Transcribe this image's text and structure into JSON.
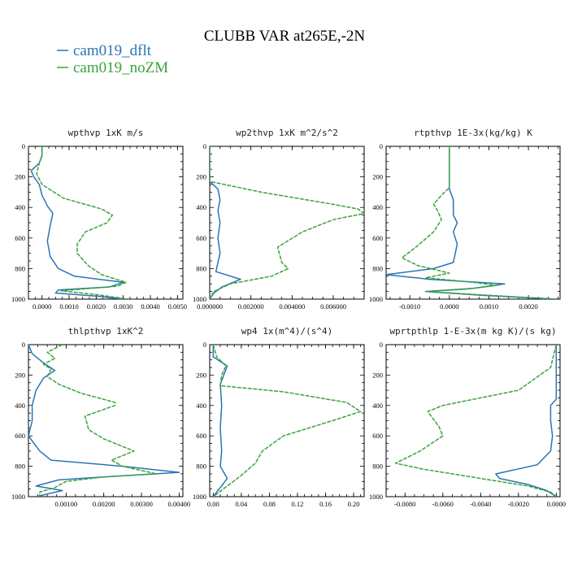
{
  "title": "CLUBB VAR at265E,-2N",
  "legend": [
    {
      "label": "cam019_dflt",
      "color": "#2b74b4"
    },
    {
      "label": "cam019_noZM",
      "color": "#3aa33a"
    }
  ],
  "chart_data": [
    {
      "type": "line",
      "title": "wpthvp  1xK m/s",
      "xlim": [
        -0.0005,
        0.0052
      ],
      "ylim": [
        1000,
        0
      ],
      "xticks": [
        "0.0000",
        "0.0010",
        "0.0020",
        "0.0030",
        "0.0040",
        "0.0050"
      ],
      "xtick_values": [
        0,
        0.001,
        0.002,
        0.003,
        0.004,
        0.005
      ],
      "yticks": [
        "0",
        "200",
        "400",
        "600",
        "800",
        "1000"
      ],
      "series": [
        {
          "name": "cam019_dflt",
          "points": [
            [
              0.0,
              0
            ],
            [
              0.0,
              60
            ],
            [
              -0.0001,
              110
            ],
            [
              -0.0004,
              160
            ],
            [
              -0.0003,
              200
            ],
            [
              -0.0001,
              250
            ],
            [
              0.0,
              320
            ],
            [
              0.0002,
              390
            ],
            [
              0.0004,
              440
            ],
            [
              0.0003,
              520
            ],
            [
              0.0002,
              620
            ],
            [
              0.0003,
              720
            ],
            [
              0.0006,
              800
            ],
            [
              0.0012,
              850
            ],
            [
              0.003,
              890
            ],
            [
              0.0025,
              920
            ],
            [
              0.0006,
              940
            ],
            [
              0.0005,
              960
            ],
            [
              0.002,
              980
            ],
            [
              0.003,
              1000
            ]
          ]
        },
        {
          "name": "cam019_noZM",
          "points": [
            [
              0.0,
              0
            ],
            [
              0.0,
              60
            ],
            [
              -0.0001,
              110
            ],
            [
              -0.0002,
              180
            ],
            [
              0.0,
              250
            ],
            [
              0.0008,
              340
            ],
            [
              0.0022,
              410
            ],
            [
              0.0026,
              450
            ],
            [
              0.0024,
              500
            ],
            [
              0.0016,
              560
            ],
            [
              0.0013,
              640
            ],
            [
              0.0013,
              700
            ],
            [
              0.0017,
              780
            ],
            [
              0.0022,
              840
            ],
            [
              0.0031,
              890
            ],
            [
              0.0028,
              915
            ],
            [
              0.0007,
              945
            ],
            [
              0.002,
              970
            ],
            [
              0.0032,
              1000
            ]
          ]
        }
      ]
    },
    {
      "type": "line",
      "title": "wp2thvp  1xK m^2/s^2",
      "xlim": [
        0,
        0.0075
      ],
      "ylim": [
        1000,
        0
      ],
      "xticks": [
        "0.000000",
        "0.002000",
        "0.004000",
        "0.006000"
      ],
      "xtick_values": [
        0,
        0.002,
        0.004,
        0.006
      ],
      "yticks": [
        "0",
        "200",
        "400",
        "600",
        "800",
        "1000"
      ],
      "series": [
        {
          "name": "cam019_dflt",
          "points": [
            [
              0.0,
              0
            ],
            [
              0.0,
              230
            ],
            [
              0.0004,
              280
            ],
            [
              0.0005,
              350
            ],
            [
              0.0004,
              420
            ],
            [
              0.0005,
              500
            ],
            [
              0.0004,
              600
            ],
            [
              0.0005,
              700
            ],
            [
              0.0003,
              820
            ],
            [
              0.0015,
              870
            ],
            [
              0.0006,
              920
            ],
            [
              0.0002,
              960
            ],
            [
              0.0,
              1000
            ]
          ]
        },
        {
          "name": "cam019_noZM",
          "points": [
            [
              0.0,
              0
            ],
            [
              0.0,
              230
            ],
            [
              0.0025,
              300
            ],
            [
              0.006,
              380
            ],
            [
              0.0072,
              410
            ],
            [
              0.0075,
              440
            ],
            [
              0.006,
              480
            ],
            [
              0.0045,
              560
            ],
            [
              0.0033,
              660
            ],
            [
              0.0035,
              760
            ],
            [
              0.0038,
              800
            ],
            [
              0.003,
              850
            ],
            [
              0.001,
              900
            ],
            [
              0.0002,
              950
            ],
            [
              0.0,
              1000
            ]
          ]
        }
      ]
    },
    {
      "type": "line",
      "title": "rtpthvp  1E-3x(kg/kg) K",
      "xlim": [
        -0.0016,
        0.0028
      ],
      "ylim": [
        1000,
        0
      ],
      "xticks": [
        "-0.0010",
        "0.0000",
        "0.0010",
        "0.0020"
      ],
      "xtick_values": [
        -0.001,
        0,
        0.001,
        0.002
      ],
      "yticks": [
        "0",
        "200",
        "400",
        "600",
        "800",
        "1000"
      ],
      "series": [
        {
          "name": "cam019_dflt",
          "points": [
            [
              0.0,
              0
            ],
            [
              0.0,
              280
            ],
            [
              0.0001,
              350
            ],
            [
              0.0001,
              450
            ],
            [
              0.0002,
              500
            ],
            [
              0.0001,
              560
            ],
            [
              0.0002,
              640
            ],
            [
              0.0001,
              760
            ],
            [
              -0.0004,
              800
            ],
            [
              -0.0016,
              840
            ],
            [
              -0.0005,
              870
            ],
            [
              0.0014,
              900
            ],
            [
              0.0006,
              930
            ],
            [
              -0.0006,
              950
            ],
            [
              0.0008,
              975
            ],
            [
              0.0027,
              1000
            ]
          ]
        },
        {
          "name": "cam019_noZM",
          "points": [
            [
              0.0,
              0
            ],
            [
              0.0,
              270
            ],
            [
              -0.0002,
              320
            ],
            [
              -0.0004,
              380
            ],
            [
              -0.0003,
              420
            ],
            [
              -0.0002,
              480
            ],
            [
              -0.0004,
              560
            ],
            [
              -0.0008,
              650
            ],
            [
              -0.0012,
              730
            ],
            [
              -0.0008,
              780
            ],
            [
              0.0,
              830
            ],
            [
              -0.0006,
              860
            ],
            [
              0.0006,
              890
            ],
            [
              0.0012,
              910
            ],
            [
              0.0004,
              935
            ],
            [
              -0.0006,
              950
            ],
            [
              0.001,
              975
            ],
            [
              0.0027,
              1000
            ]
          ]
        }
      ]
    },
    {
      "type": "line",
      "title": "thlpthvp  1xK^2",
      "xlim": [
        0,
        0.0041
      ],
      "ylim": [
        1000,
        0
      ],
      "xticks": [
        "0.00100",
        "0.00200",
        "0.00300",
        "0.00400"
      ],
      "xtick_values": [
        0.001,
        0.002,
        0.003,
        0.004
      ],
      "yticks": [
        "0",
        "200",
        "400",
        "600",
        "800",
        "1000"
      ],
      "series": [
        {
          "name": "cam019_dflt",
          "points": [
            [
              0.0,
              0
            ],
            [
              0.0001,
              60
            ],
            [
              0.0004,
              120
            ],
            [
              0.0007,
              170
            ],
            [
              0.0004,
              220
            ],
            [
              0.0002,
              300
            ],
            [
              0.0001,
              400
            ],
            [
              0.0001,
              500
            ],
            [
              0.0,
              600
            ],
            [
              0.0003,
              700
            ],
            [
              0.0006,
              760
            ],
            [
              0.0025,
              800
            ],
            [
              0.004,
              840
            ],
            [
              0.002,
              870
            ],
            [
              0.0008,
              890
            ],
            [
              0.0002,
              930
            ],
            [
              0.0009,
              960
            ],
            [
              0.0002,
              1000
            ]
          ]
        },
        {
          "name": "cam019_noZM",
          "points": [
            [
              0.0009,
              0
            ],
            [
              0.0005,
              50
            ],
            [
              0.0007,
              90
            ],
            [
              0.0004,
              130
            ],
            [
              0.0006,
              160
            ],
            [
              0.0005,
              210
            ],
            [
              0.0008,
              260
            ],
            [
              0.0014,
              320
            ],
            [
              0.0023,
              380
            ],
            [
              0.0023,
              400
            ],
            [
              0.0015,
              470
            ],
            [
              0.0016,
              560
            ],
            [
              0.002,
              620
            ],
            [
              0.0028,
              700
            ],
            [
              0.0022,
              760
            ],
            [
              0.0025,
              800
            ],
            [
              0.0034,
              850
            ],
            [
              0.002,
              870
            ],
            [
              0.001,
              900
            ],
            [
              0.0007,
              940
            ],
            [
              0.0003,
              970
            ],
            [
              0.0003,
              1000
            ]
          ]
        }
      ]
    },
    {
      "type": "line",
      "title": "wp4  1x(m^4)/(s^4)",
      "xlim": [
        -0.005,
        0.215
      ],
      "ylim": [
        1000,
        0
      ],
      "xticks": [
        "0.00",
        "0.04",
        "0.08",
        "0.12",
        "0.16",
        "0.20"
      ],
      "xtick_values": [
        0,
        0.04,
        0.08,
        0.12,
        0.16,
        0.2
      ],
      "yticks": [
        "0",
        "200",
        "400",
        "600",
        "800",
        "1000"
      ],
      "series": [
        {
          "name": "cam019_dflt",
          "points": [
            [
              0.0,
              0
            ],
            [
              0.0,
              80
            ],
            [
              0.02,
              140
            ],
            [
              0.015,
              200
            ],
            [
              0.01,
              260
            ],
            [
              0.012,
              400
            ],
            [
              0.01,
              550
            ],
            [
              0.012,
              700
            ],
            [
              0.01,
              800
            ],
            [
              0.02,
              880
            ],
            [
              0.01,
              940
            ],
            [
              0.005,
              970
            ],
            [
              0.0,
              1000
            ]
          ]
        },
        {
          "name": "cam019_noZM",
          "points": [
            [
              0.0,
              0
            ],
            [
              0.005,
              80
            ],
            [
              0.018,
              140
            ],
            [
              0.012,
              200
            ],
            [
              0.01,
              270
            ],
            [
              0.1,
              310
            ],
            [
              0.19,
              380
            ],
            [
              0.21,
              440
            ],
            [
              0.17,
              500
            ],
            [
              0.1,
              600
            ],
            [
              0.07,
              700
            ],
            [
              0.06,
              780
            ],
            [
              0.04,
              860
            ],
            [
              0.02,
              930
            ],
            [
              0.0,
              1000
            ]
          ]
        }
      ]
    },
    {
      "type": "line",
      "title": "wprtpthlp  1-E-3x(m kg K)/(s kg)",
      "xlim": [
        -0.009,
        0.0002
      ],
      "ylim": [
        1000,
        0
      ],
      "xticks": [
        "-0.0080",
        "-0.0060",
        "-0.0040",
        "-0.0020",
        "0.0000"
      ],
      "xtick_values": [
        -0.008,
        -0.006,
        -0.004,
        -0.002,
        0
      ],
      "yticks": [
        "0",
        "200",
        "400",
        "600",
        "800",
        "1000"
      ],
      "series": [
        {
          "name": "cam019_dflt",
          "points": [
            [
              0.0,
              0
            ],
            [
              0.0,
              360
            ],
            [
              -0.0003,
              400
            ],
            [
              -0.0003,
              500
            ],
            [
              -0.0002,
              600
            ],
            [
              -0.0003,
              700
            ],
            [
              -0.001,
              790
            ],
            [
              -0.0032,
              850
            ],
            [
              -0.003,
              880
            ],
            [
              -0.0015,
              920
            ],
            [
              -0.0005,
              960
            ],
            [
              0.0,
              1000
            ]
          ]
        },
        {
          "name": "cam019_noZM",
          "points": [
            [
              0.0,
              0
            ],
            [
              -0.0003,
              150
            ],
            [
              -0.002,
              300
            ],
            [
              -0.006,
              400
            ],
            [
              -0.0068,
              440
            ],
            [
              -0.0062,
              540
            ],
            [
              -0.006,
              600
            ],
            [
              -0.0072,
              700
            ],
            [
              -0.0085,
              780
            ],
            [
              -0.007,
              820
            ],
            [
              -0.004,
              880
            ],
            [
              -0.0015,
              930
            ],
            [
              -0.0003,
              970
            ],
            [
              0.0,
              1000
            ]
          ]
        }
      ]
    }
  ]
}
